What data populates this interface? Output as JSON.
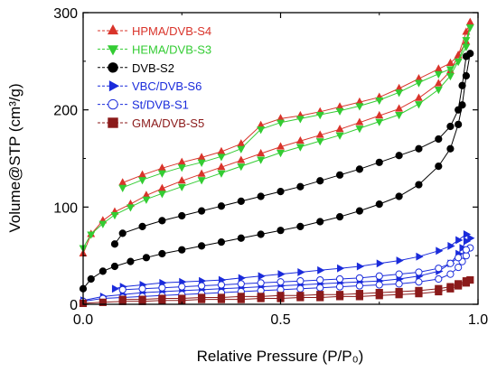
{
  "chart_data": {
    "type": "line",
    "xlabel": "Relative Pressure (P/P₀)",
    "ylabel": "Volume@STP (cm³/g)",
    "xlim": [
      0.0,
      1.0
    ],
    "ylim": [
      0,
      300
    ],
    "xticks": [
      "0.0",
      "0.5",
      "1.0"
    ],
    "yticks": [
      "0",
      "100",
      "200",
      "300"
    ],
    "legend_position": "top-left",
    "series": [
      {
        "name": "HPMA/DVB-S4",
        "color": "#d9342b",
        "marker": "triangle-up",
        "x": [
          0.0,
          0.02,
          0.05,
          0.08,
          0.12,
          0.16,
          0.2,
          0.25,
          0.3,
          0.35,
          0.4,
          0.45,
          0.5,
          0.55,
          0.6,
          0.65,
          0.7,
          0.75,
          0.8,
          0.85,
          0.9,
          0.93,
          0.95,
          0.97,
          0.98,
          0.97,
          0.95,
          0.93,
          0.9,
          0.85,
          0.8,
          0.75,
          0.7,
          0.65,
          0.6,
          0.55,
          0.5,
          0.45,
          0.4,
          0.35,
          0.3,
          0.25,
          0.2,
          0.15,
          0.1
        ],
        "y": [
          52,
          72,
          86,
          95,
          103,
          112,
          119,
          127,
          134,
          141,
          148,
          155,
          162,
          168,
          174,
          180,
          187,
          194,
          201,
          212,
          227,
          240,
          256,
          280,
          290,
          270,
          256,
          248,
          242,
          232,
          222,
          213,
          208,
          203,
          198,
          194,
          191,
          184,
          165,
          157,
          151,
          146,
          140,
          133,
          125
        ]
      },
      {
        "name": "HEMA/DVB-S3",
        "color": "#33cc33",
        "marker": "triangle-down",
        "x": [
          0.0,
          0.02,
          0.05,
          0.08,
          0.12,
          0.16,
          0.2,
          0.25,
          0.3,
          0.35,
          0.4,
          0.45,
          0.5,
          0.55,
          0.6,
          0.65,
          0.7,
          0.75,
          0.8,
          0.85,
          0.9,
          0.93,
          0.95,
          0.97,
          0.98,
          0.97,
          0.95,
          0.93,
          0.9,
          0.85,
          0.8,
          0.75,
          0.7,
          0.65,
          0.6,
          0.55,
          0.5,
          0.45,
          0.4,
          0.35,
          0.3,
          0.25,
          0.2,
          0.15,
          0.1
        ],
        "y": [
          58,
          72,
          83,
          92,
          100,
          108,
          114,
          121,
          128,
          135,
          142,
          149,
          156,
          162,
          168,
          174,
          181,
          188,
          195,
          206,
          221,
          235,
          250,
          272,
          285,
          265,
          250,
          242,
          237,
          228,
          218,
          210,
          204,
          199,
          195,
          191,
          187,
          180,
          160,
          152,
          146,
          141,
          135,
          128,
          120
        ]
      },
      {
        "name": "DVB-S2",
        "color": "#000000",
        "marker": "circle",
        "x": [
          0.0,
          0.02,
          0.05,
          0.08,
          0.12,
          0.16,
          0.2,
          0.25,
          0.3,
          0.35,
          0.4,
          0.45,
          0.5,
          0.55,
          0.6,
          0.65,
          0.7,
          0.75,
          0.8,
          0.85,
          0.9,
          0.93,
          0.95,
          0.96,
          0.97,
          0.98,
          0.97,
          0.96,
          0.95,
          0.93,
          0.9,
          0.85,
          0.8,
          0.75,
          0.7,
          0.65,
          0.6,
          0.55,
          0.5,
          0.45,
          0.4,
          0.35,
          0.3,
          0.25,
          0.2,
          0.15,
          0.1,
          0.08
        ],
        "y": [
          16,
          26,
          34,
          39,
          44,
          48,
          52,
          56,
          60,
          64,
          68,
          72,
          76,
          80,
          85,
          90,
          96,
          103,
          111,
          123,
          142,
          160,
          185,
          205,
          235,
          258,
          255,
          225,
          200,
          183,
          170,
          160,
          153,
          146,
          139,
          133,
          127,
          121,
          116,
          111,
          106,
          101,
          96,
          91,
          86,
          80,
          73,
          62
        ]
      },
      {
        "name": "VBC/DVB-S6",
        "color": "#1a2bdb",
        "marker": "triangle-right",
        "x": [
          0.0,
          0.05,
          0.1,
          0.15,
          0.2,
          0.25,
          0.3,
          0.35,
          0.4,
          0.45,
          0.5,
          0.55,
          0.6,
          0.65,
          0.7,
          0.75,
          0.8,
          0.85,
          0.9,
          0.93,
          0.95,
          0.96,
          0.97,
          0.98,
          0.97,
          0.95,
          0.93,
          0.9,
          0.85,
          0.8,
          0.75,
          0.7,
          0.65,
          0.6,
          0.55,
          0.5,
          0.45,
          0.4,
          0.35,
          0.3,
          0.25,
          0.2,
          0.15,
          0.1,
          0.08
        ],
        "y": [
          4,
          8,
          10,
          12,
          13,
          14,
          15,
          16,
          17,
          18,
          19,
          20,
          21,
          22,
          23,
          24,
          26,
          29,
          34,
          42,
          52,
          58,
          65,
          68,
          72,
          66,
          60,
          55,
          49,
          45,
          42,
          39,
          37,
          35,
          33,
          31,
          29,
          27,
          25,
          24,
          23,
          22,
          20,
          18,
          16
        ]
      },
      {
        "name": "St/DVB-S1",
        "color": "#1a2bdb",
        "marker": "circle-open",
        "x": [
          0.0,
          0.05,
          0.1,
          0.15,
          0.2,
          0.25,
          0.3,
          0.35,
          0.4,
          0.45,
          0.5,
          0.55,
          0.6,
          0.65,
          0.7,
          0.75,
          0.8,
          0.85,
          0.9,
          0.93,
          0.95,
          0.96,
          0.97,
          0.98,
          0.97,
          0.95,
          0.93,
          0.9,
          0.85,
          0.8,
          0.75,
          0.7,
          0.65,
          0.6,
          0.55,
          0.5,
          0.45,
          0.4,
          0.35,
          0.3,
          0.25,
          0.2,
          0.15,
          0.1
        ],
        "y": [
          3,
          6,
          7,
          8,
          9,
          10,
          11,
          12,
          13,
          14,
          15,
          16,
          17,
          18,
          19,
          20,
          21,
          23,
          26,
          31,
          38,
          44,
          50,
          58,
          56,
          48,
          42,
          37,
          33,
          31,
          29,
          27,
          26,
          25,
          24,
          23,
          22,
          21,
          20,
          19,
          18,
          17,
          16,
          15
        ]
      },
      {
        "name": "GMA/DVB-S5",
        "color": "#8b1a1a",
        "marker": "square",
        "x": [
          0.0,
          0.05,
          0.1,
          0.15,
          0.2,
          0.25,
          0.3,
          0.35,
          0.4,
          0.45,
          0.5,
          0.55,
          0.6,
          0.65,
          0.7,
          0.75,
          0.8,
          0.85,
          0.9,
          0.93,
          0.95,
          0.97,
          0.98,
          0.97,
          0.95,
          0.93,
          0.9,
          0.85,
          0.8,
          0.75,
          0.7,
          0.65,
          0.6,
          0.55,
          0.5,
          0.45,
          0.4,
          0.35,
          0.3,
          0.25,
          0.2,
          0.15,
          0.1
        ],
        "y": [
          1,
          2,
          3,
          3,
          4,
          4,
          5,
          5,
          5,
          6,
          6,
          7,
          7,
          8,
          8,
          9,
          10,
          11,
          13,
          16,
          19,
          22,
          25,
          24,
          21,
          18,
          16,
          14,
          13,
          12,
          11,
          10,
          10,
          9,
          9,
          8,
          8,
          7,
          7,
          6,
          6,
          5,
          5
        ]
      }
    ]
  }
}
